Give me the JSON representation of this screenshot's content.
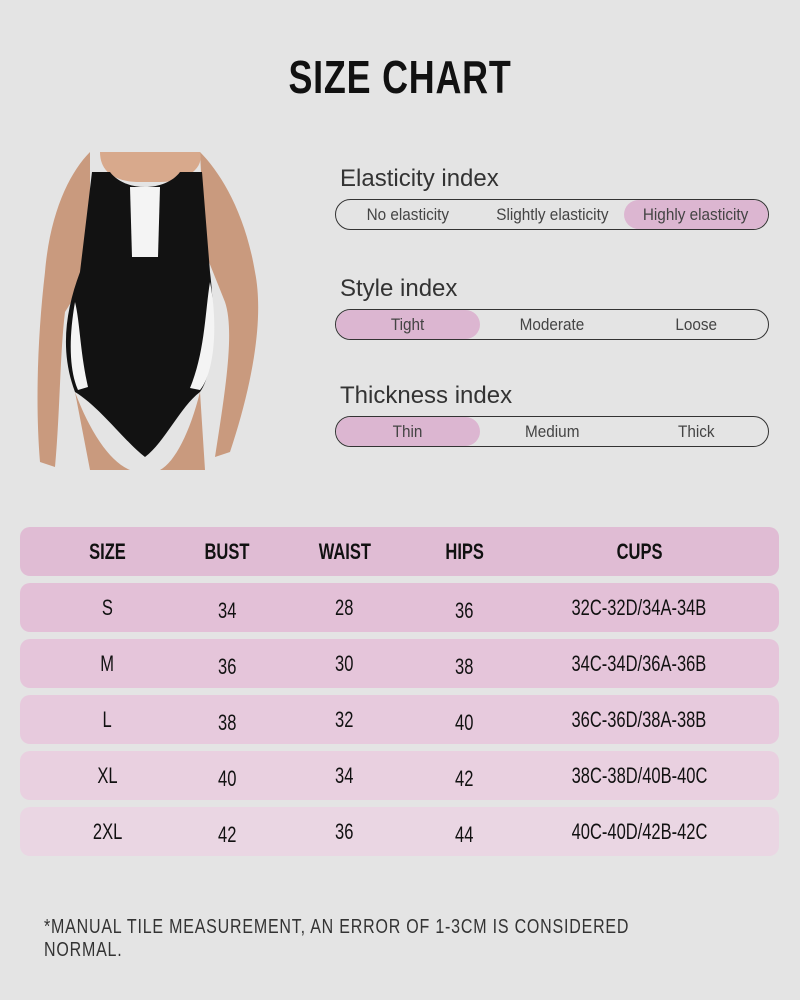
{
  "title": "SIZE CHART",
  "indices": [
    {
      "label": "Elasticity index",
      "options": [
        "No elasticity",
        "Slightly elasticity",
        "Highly elasticity"
      ],
      "selected": 2
    },
    {
      "label": "Style index",
      "options": [
        "Tight",
        "Moderate",
        "Loose"
      ],
      "selected": 0
    },
    {
      "label": "Thickness index",
      "options": [
        "Thin",
        "Medium",
        "Thick"
      ],
      "selected": 0
    }
  ],
  "table": {
    "headers": [
      "SIZE",
      "BUST",
      "WAIST",
      "HIPS",
      "CUPS"
    ],
    "rows": [
      [
        "S",
        "34",
        "28",
        "36",
        "32C-32D/34A-34B"
      ],
      [
        "M",
        "36",
        "30",
        "38",
        "34C-34D/36A-36B"
      ],
      [
        "L",
        "38",
        "32",
        "40",
        "36C-36D/38A-38B"
      ],
      [
        "XL",
        "40",
        "34",
        "42",
        "38C-38D/40B-40C"
      ],
      [
        "2XL",
        "42",
        "36",
        "44",
        "40C-40D/42B-42C"
      ]
    ]
  },
  "note": "*MANUAL TILE MEASUREMENT, AN ERROR OF 1-3CM IS CONSIDERED NORMAL.",
  "colors": {
    "background": "#e4e4e4",
    "accent": "#dcb6d1",
    "header_row": "#e0bcd4"
  }
}
